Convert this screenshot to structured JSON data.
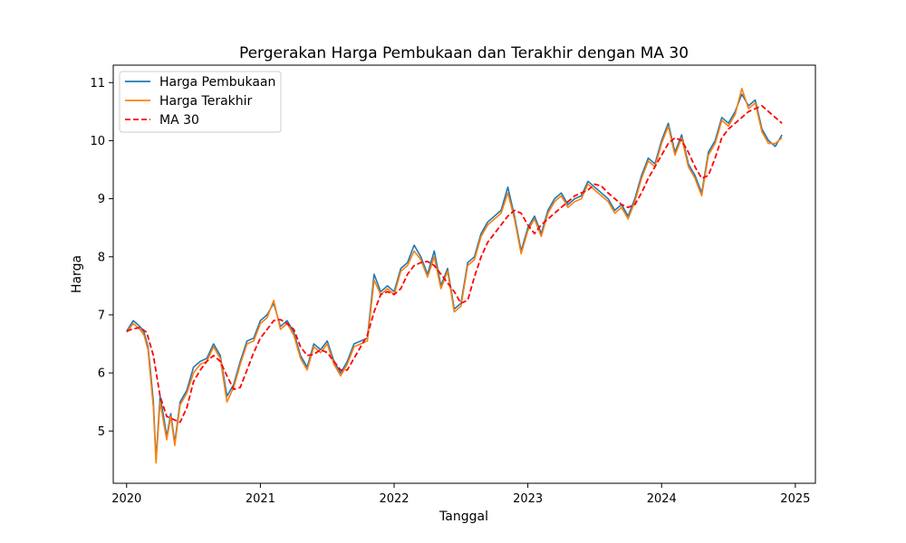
{
  "chart_data": {
    "type": "line",
    "title": "Pergerakan Harga Pembukaan dan Terakhir dengan MA 30",
    "xlabel": "Tanggal",
    "ylabel": "Harga",
    "xlim": [
      2019.9,
      2025.15
    ],
    "ylim": [
      4.1,
      11.3
    ],
    "x_ticks": [
      2020,
      2021,
      2022,
      2023,
      2024,
      2025
    ],
    "x_tick_labels": [
      "2020",
      "2021",
      "2022",
      "2023",
      "2024",
      "2025"
    ],
    "y_ticks": [
      5,
      6,
      7,
      8,
      9,
      10,
      11
    ],
    "y_tick_labels": [
      "5",
      "6",
      "7",
      "8",
      "9",
      "10",
      "11"
    ],
    "legend_position": "top-left",
    "series": [
      {
        "name": "Harga Pembukaan",
        "color": "#1f77b4",
        "style": "solid",
        "x": [
          2020.0,
          2020.05,
          2020.1,
          2020.13,
          2020.16,
          2020.18,
          2020.2,
          2020.22,
          2020.25,
          2020.28,
          2020.3,
          2020.33,
          2020.36,
          2020.4,
          2020.45,
          2020.5,
          2020.55,
          2020.6,
          2020.65,
          2020.7,
          2020.75,
          2020.8,
          2020.85,
          2020.9,
          2020.95,
          2021.0,
          2021.05,
          2021.1,
          2021.15,
          2021.2,
          2021.25,
          2021.3,
          2021.35,
          2021.4,
          2021.45,
          2021.5,
          2021.55,
          2021.6,
          2021.65,
          2021.7,
          2021.75,
          2021.8,
          2021.85,
          2021.9,
          2021.95,
          2022.0,
          2022.05,
          2022.1,
          2022.15,
          2022.2,
          2022.25,
          2022.3,
          2022.35,
          2022.4,
          2022.45,
          2022.5,
          2022.55,
          2022.6,
          2022.65,
          2022.7,
          2022.75,
          2022.8,
          2022.85,
          2022.9,
          2022.95,
          2023.0,
          2023.05,
          2023.1,
          2023.15,
          2023.2,
          2023.25,
          2023.3,
          2023.35,
          2023.4,
          2023.45,
          2023.5,
          2023.55,
          2023.6,
          2023.65,
          2023.7,
          2023.75,
          2023.8,
          2023.85,
          2023.9,
          2023.95,
          2024.0,
          2024.05,
          2024.1,
          2024.15,
          2024.2,
          2024.25,
          2024.3,
          2024.35,
          2024.4,
          2024.45,
          2024.5,
          2024.55,
          2024.6,
          2024.65,
          2024.7,
          2024.75,
          2024.8,
          2024.85,
          2024.9
        ],
        "values": [
          6.72,
          6.9,
          6.8,
          6.7,
          6.45,
          6.0,
          5.5,
          4.5,
          5.6,
          5.2,
          4.9,
          5.3,
          4.8,
          5.5,
          5.7,
          6.1,
          6.2,
          6.25,
          6.5,
          6.3,
          5.6,
          5.8,
          6.2,
          6.55,
          6.6,
          6.9,
          7.0,
          7.2,
          6.8,
          6.9,
          6.7,
          6.3,
          6.1,
          6.5,
          6.4,
          6.55,
          6.2,
          6.0,
          6.2,
          6.5,
          6.55,
          6.6,
          7.7,
          7.4,
          7.5,
          7.4,
          7.8,
          7.9,
          8.2,
          8.0,
          7.7,
          8.1,
          7.5,
          7.8,
          7.1,
          7.2,
          7.9,
          8.0,
          8.4,
          8.6,
          8.7,
          8.8,
          9.2,
          8.7,
          8.1,
          8.5,
          8.7,
          8.4,
          8.8,
          9.0,
          9.1,
          8.9,
          9.0,
          9.05,
          9.3,
          9.2,
          9.1,
          9.0,
          8.8,
          8.9,
          8.7,
          9.0,
          9.4,
          9.7,
          9.6,
          10.0,
          10.3,
          9.8,
          10.1,
          9.6,
          9.4,
          9.1,
          9.8,
          10.0,
          10.4,
          10.3,
          10.5,
          10.8,
          10.6,
          10.7,
          10.2,
          10.0,
          9.9,
          10.1
        ]
      },
      {
        "name": "Harga Terakhir",
        "color": "#ff7f0e",
        "style": "solid",
        "x": [
          2020.0,
          2020.05,
          2020.1,
          2020.13,
          2020.16,
          2020.18,
          2020.2,
          2020.22,
          2020.25,
          2020.28,
          2020.3,
          2020.33,
          2020.36,
          2020.4,
          2020.45,
          2020.5,
          2020.55,
          2020.6,
          2020.65,
          2020.7,
          2020.75,
          2020.8,
          2020.85,
          2020.9,
          2020.95,
          2021.0,
          2021.05,
          2021.1,
          2021.15,
          2021.2,
          2021.25,
          2021.3,
          2021.35,
          2021.4,
          2021.45,
          2021.5,
          2021.55,
          2021.6,
          2021.65,
          2021.7,
          2021.75,
          2021.8,
          2021.85,
          2021.9,
          2021.95,
          2022.0,
          2022.05,
          2022.1,
          2022.15,
          2022.2,
          2022.25,
          2022.3,
          2022.35,
          2022.4,
          2022.45,
          2022.5,
          2022.55,
          2022.6,
          2022.65,
          2022.7,
          2022.75,
          2022.8,
          2022.85,
          2022.9,
          2022.95,
          2023.0,
          2023.05,
          2023.1,
          2023.15,
          2023.2,
          2023.25,
          2023.3,
          2023.35,
          2023.4,
          2023.45,
          2023.5,
          2023.55,
          2023.6,
          2023.65,
          2023.7,
          2023.75,
          2023.8,
          2023.85,
          2023.9,
          2023.95,
          2024.0,
          2024.05,
          2024.1,
          2024.15,
          2024.2,
          2024.25,
          2024.3,
          2024.35,
          2024.4,
          2024.45,
          2024.5,
          2024.55,
          2024.6,
          2024.65,
          2024.7,
          2024.75,
          2024.8,
          2024.85,
          2024.9
        ],
        "values": [
          6.7,
          6.85,
          6.75,
          6.65,
          6.4,
          5.9,
          5.4,
          4.45,
          5.5,
          5.1,
          4.85,
          5.25,
          4.75,
          5.45,
          5.65,
          6.0,
          6.15,
          6.2,
          6.45,
          6.25,
          5.5,
          5.75,
          6.15,
          6.5,
          6.55,
          6.85,
          6.95,
          7.25,
          6.75,
          6.85,
          6.65,
          6.25,
          6.05,
          6.45,
          6.35,
          6.5,
          6.15,
          5.95,
          6.15,
          6.45,
          6.5,
          6.55,
          7.6,
          7.35,
          7.45,
          7.35,
          7.75,
          7.85,
          8.1,
          7.95,
          7.65,
          8.0,
          7.45,
          7.75,
          7.05,
          7.15,
          7.85,
          7.95,
          8.35,
          8.55,
          8.65,
          8.75,
          9.1,
          8.65,
          8.05,
          8.45,
          8.65,
          8.35,
          8.75,
          8.95,
          9.05,
          8.85,
          8.95,
          9.0,
          9.25,
          9.15,
          9.05,
          8.95,
          8.75,
          8.85,
          8.65,
          8.95,
          9.35,
          9.65,
          9.55,
          9.95,
          10.25,
          9.75,
          10.05,
          9.55,
          9.35,
          9.05,
          9.75,
          9.95,
          10.35,
          10.25,
          10.45,
          10.9,
          10.55,
          10.65,
          10.15,
          9.95,
          9.95,
          10.05
        ]
      },
      {
        "name": "MA 30",
        "color": "#ff0000",
        "style": "dashed",
        "x": [
          2020.0,
          2020.05,
          2020.1,
          2020.15,
          2020.2,
          2020.25,
          2020.3,
          2020.35,
          2020.4,
          2020.45,
          2020.5,
          2020.55,
          2020.6,
          2020.65,
          2020.7,
          2020.75,
          2020.8,
          2020.85,
          2020.9,
          2020.95,
          2021.0,
          2021.05,
          2021.1,
          2021.15,
          2021.2,
          2021.25,
          2021.3,
          2021.35,
          2021.4,
          2021.45,
          2021.5,
          2021.55,
          2021.6,
          2021.65,
          2021.7,
          2021.75,
          2021.8,
          2021.85,
          2021.9,
          2021.95,
          2022.0,
          2022.05,
          2022.1,
          2022.15,
          2022.2,
          2022.25,
          2022.3,
          2022.35,
          2022.4,
          2022.45,
          2022.5,
          2022.55,
          2022.6,
          2022.65,
          2022.7,
          2022.75,
          2022.8,
          2022.85,
          2022.9,
          2022.95,
          2023.0,
          2023.05,
          2023.1,
          2023.15,
          2023.2,
          2023.25,
          2023.3,
          2023.35,
          2023.4,
          2023.45,
          2023.5,
          2023.55,
          2023.6,
          2023.65,
          2023.7,
          2023.75,
          2023.8,
          2023.85,
          2023.9,
          2023.95,
          2024.0,
          2024.05,
          2024.1,
          2024.15,
          2024.2,
          2024.25,
          2024.3,
          2024.35,
          2024.4,
          2024.45,
          2024.5,
          2024.55,
          2024.6,
          2024.65,
          2024.7,
          2024.75,
          2024.8,
          2024.85,
          2024.9
        ],
        "values": [
          6.72,
          6.76,
          6.78,
          6.7,
          6.3,
          5.6,
          5.25,
          5.2,
          5.15,
          5.4,
          5.85,
          6.05,
          6.2,
          6.3,
          6.2,
          5.95,
          5.72,
          5.75,
          6.05,
          6.35,
          6.6,
          6.75,
          6.9,
          6.92,
          6.85,
          6.75,
          6.45,
          6.3,
          6.32,
          6.4,
          6.35,
          6.2,
          6.05,
          6.05,
          6.25,
          6.45,
          6.65,
          7.05,
          7.35,
          7.4,
          7.35,
          7.45,
          7.7,
          7.85,
          7.9,
          7.92,
          7.85,
          7.7,
          7.55,
          7.4,
          7.2,
          7.25,
          7.65,
          8.0,
          8.25,
          8.4,
          8.55,
          8.7,
          8.8,
          8.75,
          8.55,
          8.4,
          8.55,
          8.65,
          8.75,
          8.85,
          8.95,
          9.05,
          9.1,
          9.15,
          9.25,
          9.22,
          9.1,
          9.0,
          8.9,
          8.85,
          8.9,
          9.1,
          9.35,
          9.55,
          9.75,
          9.95,
          10.05,
          10.0,
          9.8,
          9.55,
          9.35,
          9.4,
          9.7,
          10.05,
          10.2,
          10.3,
          10.4,
          10.5,
          10.55,
          10.6,
          10.5,
          10.4,
          10.3
        ]
      }
    ]
  }
}
